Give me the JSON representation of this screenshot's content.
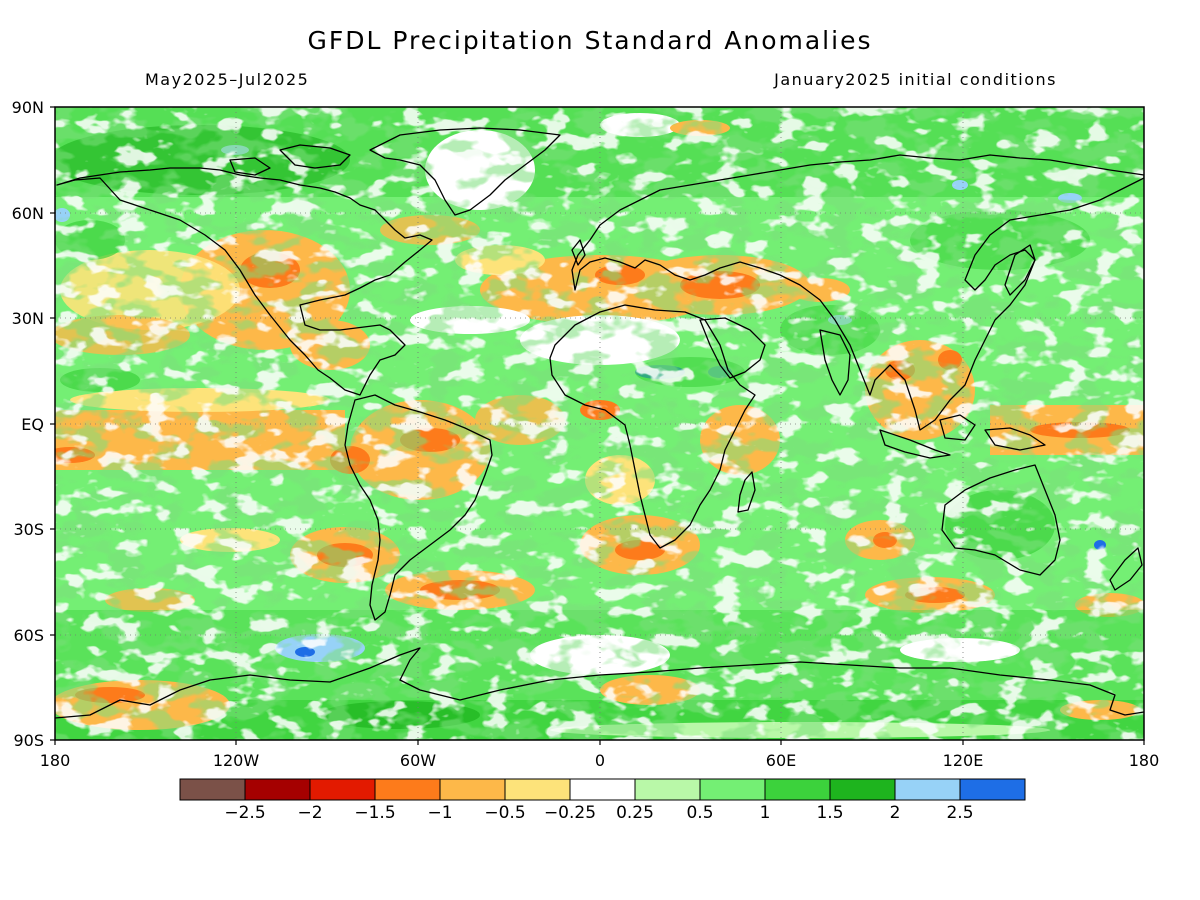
{
  "header": {
    "title": "GFDL Precipitation Standard Anomalies",
    "period": "May2025–Jul2025",
    "init": "January2025 initial conditions"
  },
  "axes": {
    "lat_labels": [
      "90N",
      "60N",
      "30N",
      "EQ",
      "30S",
      "60S",
      "90S"
    ],
    "lon_labels": [
      "180",
      "120W",
      "60W",
      "0",
      "60E",
      "120E",
      "180"
    ]
  },
  "colorbar": {
    "colors": [
      "#7b5148",
      "#a50000",
      "#e31a00",
      "#fd7b1b",
      "#fdb849",
      "#fde37a",
      "#ffffff",
      "#b9f8a8",
      "#74ef74",
      "#3cd23c",
      "#1eb41e",
      "#97d2f7",
      "#1e6ee6"
    ],
    "labels": [
      "−2.5",
      "−2",
      "−1.5",
      "−1",
      "−0.5",
      "−0.25",
      "0.25",
      "0.5",
      "1",
      "1.5",
      "2",
      "2.5"
    ]
  },
  "map": {
    "lon_range": [
      -180,
      180
    ],
    "lat_range": [
      -90,
      90
    ]
  }
}
